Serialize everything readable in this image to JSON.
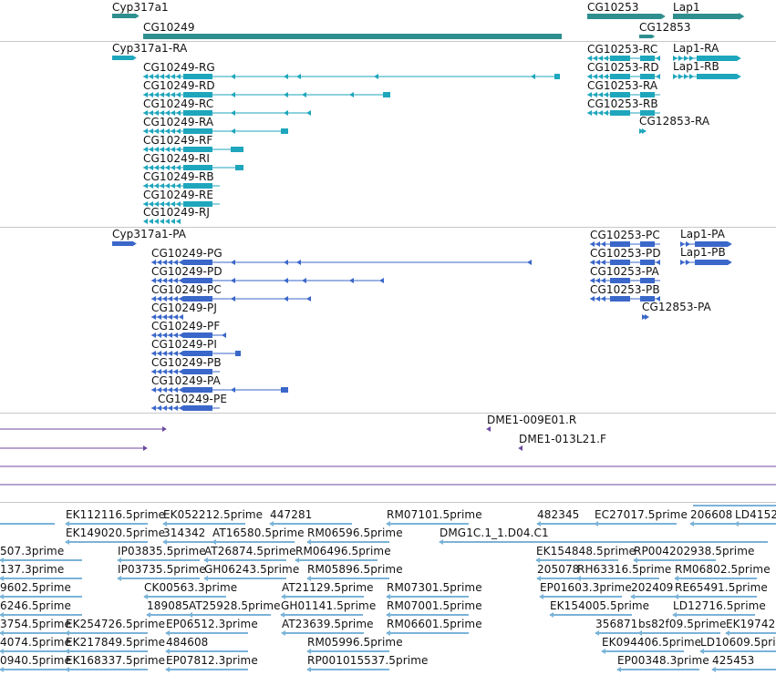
{
  "colors": {
    "gene": "#2f8f8f",
    "rna": "#1ea6bd",
    "protein": "#3a67c9",
    "bac": "#6b4aa0",
    "est": "#7ab3d8",
    "separator": "#c8c8c8"
  },
  "gene_track": {
    "genes": [
      {
        "label": "Cyp317a1",
        "strand": "+"
      },
      {
        "label": "CG10249",
        "strand": "-"
      },
      {
        "label": "CG10253",
        "strand": "-"
      },
      {
        "label": "Lap1",
        "strand": "+"
      },
      {
        "label": "CG12853",
        "strand": "+"
      }
    ]
  },
  "transcript_track": {
    "transcripts": [
      {
        "label": "Cyp317a1-RA"
      },
      {
        "label": "CG10249-RG"
      },
      {
        "label": "CG10249-RD"
      },
      {
        "label": "CG10249-RC"
      },
      {
        "label": "CG10249-RA"
      },
      {
        "label": "CG10249-RF"
      },
      {
        "label": "CG10249-RI"
      },
      {
        "label": "CG10249-RB"
      },
      {
        "label": "CG10249-RE"
      },
      {
        "label": "CG10249-RJ"
      },
      {
        "label": "CG10253-RC"
      },
      {
        "label": "CG10253-RD"
      },
      {
        "label": "CG10253-RA"
      },
      {
        "label": "CG10253-RB"
      },
      {
        "label": "Lap1-RA"
      },
      {
        "label": "Lap1-RB"
      },
      {
        "label": "CG12853-RA"
      }
    ]
  },
  "protein_track": {
    "proteins": [
      {
        "label": "Cyp317a1-PA"
      },
      {
        "label": "CG10249-PG"
      },
      {
        "label": "CG10249-PD"
      },
      {
        "label": "CG10249-PC"
      },
      {
        "label": "CG10249-PJ"
      },
      {
        "label": "CG10249-PF"
      },
      {
        "label": "CG10249-PI"
      },
      {
        "label": "CG10249-PB"
      },
      {
        "label": "CG10249-PA"
      },
      {
        "label": "CG10249-PE"
      },
      {
        "label": "CG10253-PC"
      },
      {
        "label": "CG10253-PD"
      },
      {
        "label": "CG10253-PA"
      },
      {
        "label": "CG10253-PB"
      },
      {
        "label": "Lap1-PA"
      },
      {
        "label": "Lap1-PB"
      },
      {
        "label": "CG12853-PA"
      }
    ]
  },
  "bac_track": {
    "clones": [
      {
        "label": "DME1-009E01.R"
      },
      {
        "label": "DME1-013L21.F"
      }
    ]
  },
  "est_track": {
    "ests": [
      {
        "label": "EK112116.5prime"
      },
      {
        "label": "EK052212.5prime"
      },
      {
        "label": "447281"
      },
      {
        "label": "RM07101.5prime"
      },
      {
        "label": "482345"
      },
      {
        "label": "EC27017.5prime"
      },
      {
        "label": "206608"
      },
      {
        "label": "LD4152"
      },
      {
        "label": "EK149020.5prime"
      },
      {
        "label": "314342"
      },
      {
        "label": "AT16580.5prime"
      },
      {
        "label": "RM06596.5prime"
      },
      {
        "label": "DMG1C.1_1.D04.C1"
      },
      {
        "label": "507.3prime"
      },
      {
        "label": "IP03835.5prime"
      },
      {
        "label": "AT26874.5prime"
      },
      {
        "label": "RM06496.5prime"
      },
      {
        "label": "EK154848.5prime"
      },
      {
        "label": "RP004202938.5prime"
      },
      {
        "label": "137.3prime"
      },
      {
        "label": "IP03735.5prime"
      },
      {
        "label": "GH06243.5prime"
      },
      {
        "label": "RM05896.5prime"
      },
      {
        "label": "205078"
      },
      {
        "label": "RH63316.5prime"
      },
      {
        "label": "RM06802.5prime"
      },
      {
        "label": "9602.5prime"
      },
      {
        "label": "CK00563.3prime"
      },
      {
        "label": "AT21129.5prime"
      },
      {
        "label": "RM07301.5prime"
      },
      {
        "label": "EP01603.3prime"
      },
      {
        "label": "202409"
      },
      {
        "label": "RE65491.5prime"
      },
      {
        "label": "6246.5prime"
      },
      {
        "label": "189085"
      },
      {
        "label": "AT25928.5prime"
      },
      {
        "label": "GH01141.5prime"
      },
      {
        "label": "RM07001.5prime"
      },
      {
        "label": "EK154005.5prime"
      },
      {
        "label": "LD12716.5prime"
      },
      {
        "label": "3754.5prime"
      },
      {
        "label": "EK254726.5prime"
      },
      {
        "label": "EP06512.3prime"
      },
      {
        "label": "AT23639.5prime"
      },
      {
        "label": "RM06601.5prime"
      },
      {
        "label": "356871"
      },
      {
        "label": "bs82f09.5prime"
      },
      {
        "label": "EK19742"
      },
      {
        "label": "4074.5prime"
      },
      {
        "label": "EK217849.5prime"
      },
      {
        "label": "484608"
      },
      {
        "label": "RM05996.5prime"
      },
      {
        "label": "EK094406.5prime"
      },
      {
        "label": "LD10609.5prime"
      },
      {
        "label": "0940.5prime"
      },
      {
        "label": "EK168337.5prime"
      },
      {
        "label": "EP07812.3prime"
      },
      {
        "label": "RP001015537.5prime"
      },
      {
        "label": "EP00348.3prime"
      },
      {
        "label": "425453"
      }
    ]
  }
}
